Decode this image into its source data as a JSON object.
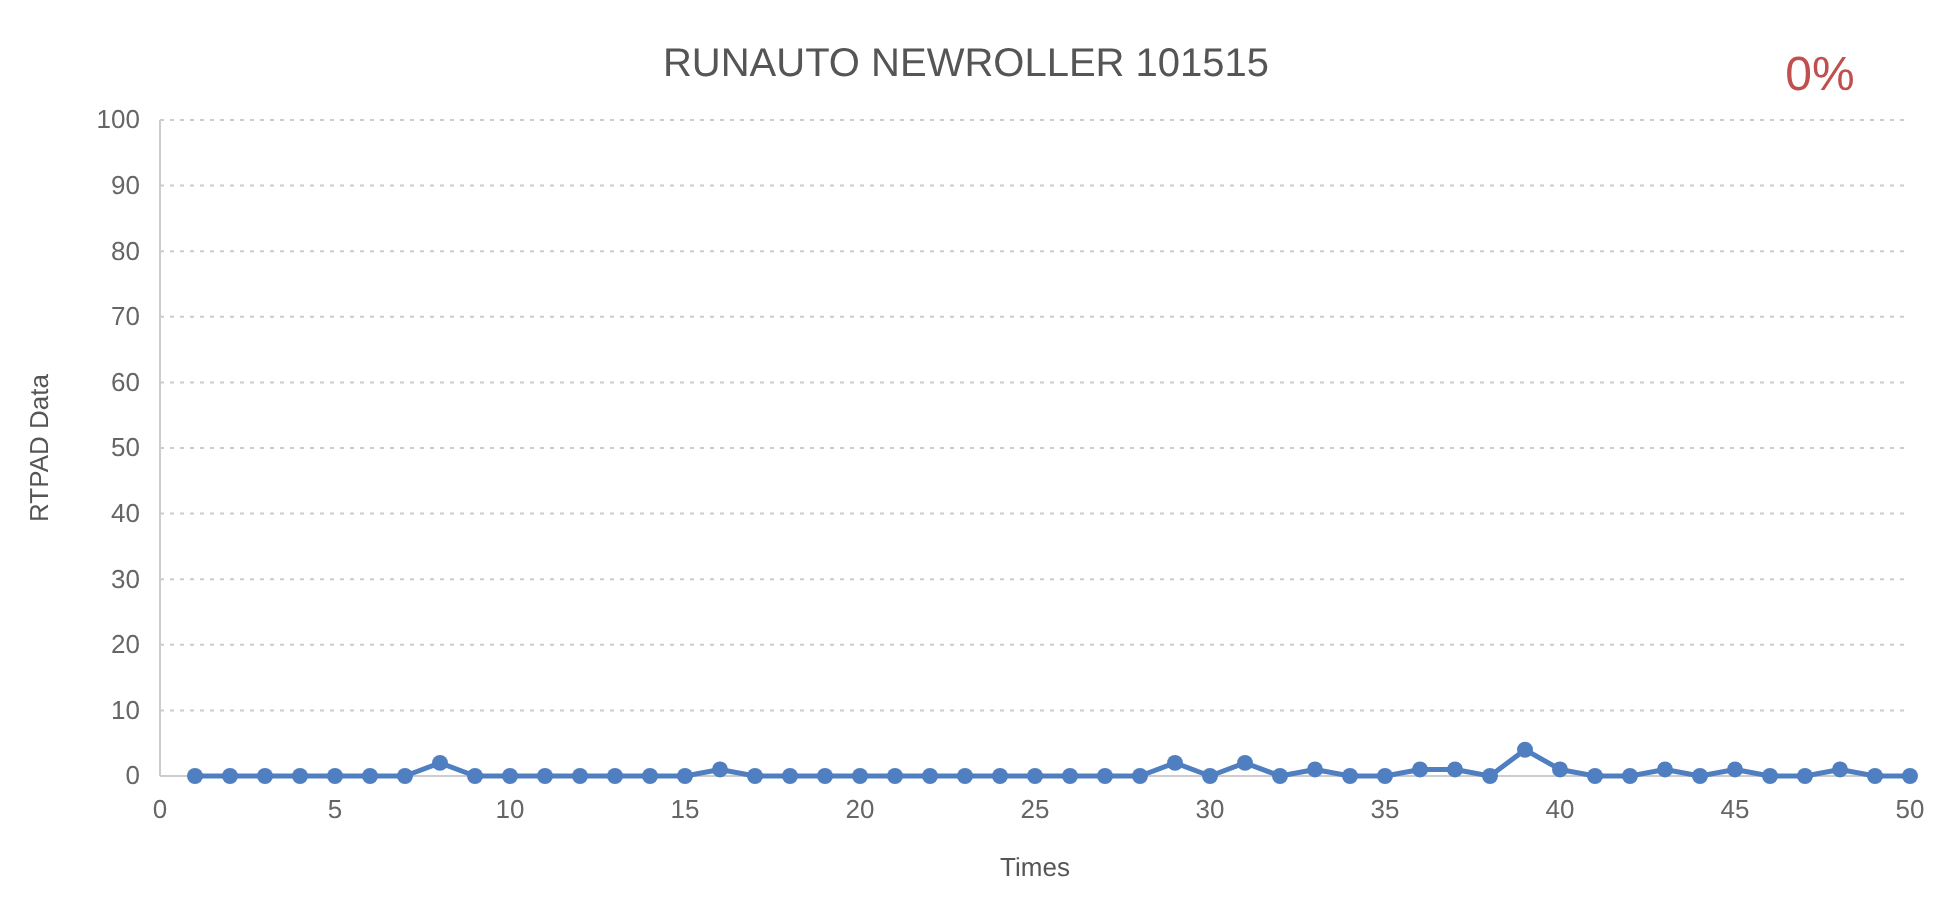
{
  "chart_data": {
    "type": "line",
    "title": "RUNAUTO NEWROLLER 101515",
    "xlabel": "Times",
    "ylabel": "RTPAD Data",
    "x": [
      1,
      2,
      3,
      4,
      5,
      6,
      7,
      8,
      9,
      10,
      11,
      12,
      13,
      14,
      15,
      16,
      17,
      18,
      19,
      20,
      21,
      22,
      23,
      24,
      25,
      26,
      27,
      28,
      29,
      30,
      31,
      32,
      33,
      34,
      35,
      36,
      37,
      38,
      39,
      40,
      41,
      42,
      43,
      44,
      45,
      46,
      47,
      48,
      49,
      50
    ],
    "series": [
      {
        "color": "#4f7fc0",
        "values": [
          0,
          0,
          0,
          0,
          0,
          0,
          0,
          2,
          0,
          0,
          0,
          0,
          0,
          0,
          0,
          1,
          0,
          0,
          0,
          0,
          0,
          0,
          0,
          0,
          0,
          0,
          0,
          0,
          2,
          0,
          2,
          0,
          1,
          0,
          0,
          1,
          1,
          0,
          4,
          1,
          0,
          0,
          1,
          0,
          1,
          0,
          0,
          1,
          0,
          0
        ]
      }
    ],
    "xlim": [
      0,
      50
    ],
    "xticks": [
      0,
      5,
      10,
      15,
      20,
      25,
      30,
      35,
      40,
      45,
      50
    ],
    "ylim": [
      0,
      100
    ],
    "yticks": [
      0,
      10,
      20,
      30,
      40,
      50,
      60,
      70,
      80,
      90,
      100
    ],
    "grid": "y",
    "marker": "circle",
    "line_style": "solid",
    "annotations": [
      "0%"
    ]
  }
}
